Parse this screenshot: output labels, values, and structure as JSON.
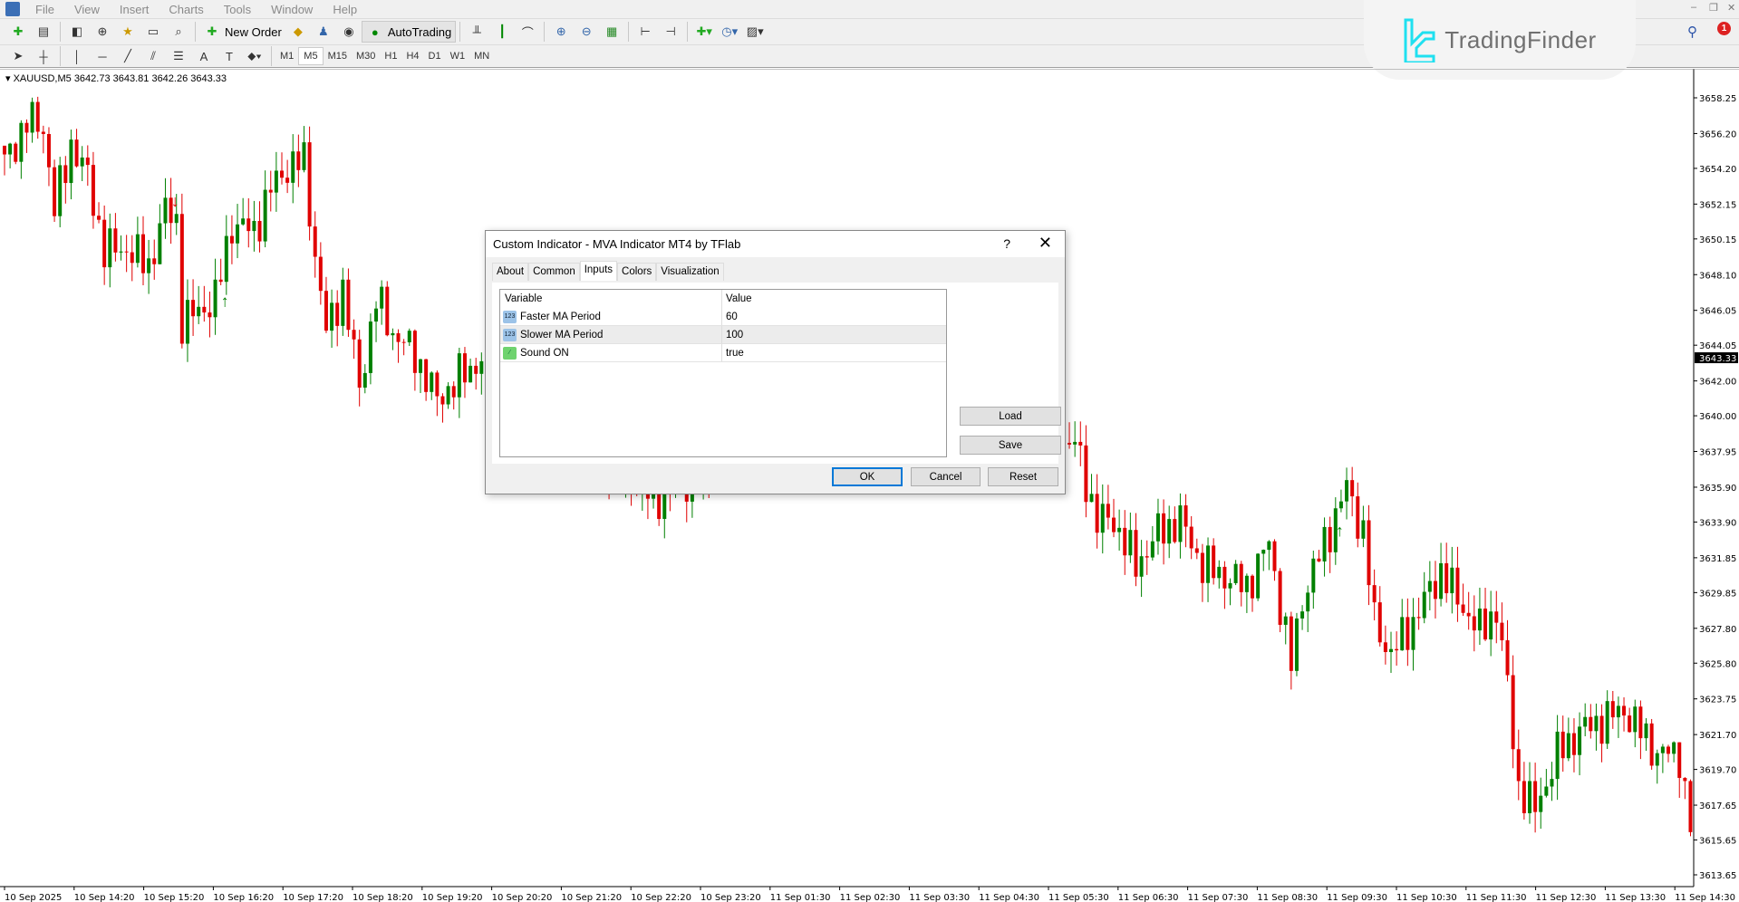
{
  "menu": [
    "File",
    "View",
    "Insert",
    "Charts",
    "Tools",
    "Window",
    "Help"
  ],
  "toolbar": {
    "new_order": "New Order",
    "auto_trading": "AutoTrading"
  },
  "timeframes": [
    "M1",
    "M5",
    "M15",
    "M30",
    "H1",
    "H4",
    "D1",
    "W1",
    "MN"
  ],
  "active_timeframe": "M5",
  "logo": {
    "text": "TradingFinder",
    "color": "#1fe0f0"
  },
  "notification_count": "1",
  "chart": {
    "header": "XAUUSD,M5  3642.73 3643.81 3642.26 3643.33",
    "symbol": "XAUUSD",
    "timeframe": "M5",
    "current_price": "3643.33",
    "colors": {
      "bull": "#008000",
      "bear": "#e00000",
      "background": "#ffffff"
    }
  },
  "chart_data": {
    "type": "candlestick",
    "y_ticks": [
      "3658.25",
      "3656.20",
      "3654.20",
      "3652.15",
      "3650.15",
      "3648.10",
      "3646.05",
      "3644.05",
      "3642.00",
      "3640.00",
      "3637.95",
      "3635.90",
      "3633.90",
      "3631.85",
      "3629.85",
      "3627.80",
      "3625.80",
      "3623.75",
      "3621.70",
      "3619.70",
      "3617.65",
      "3615.65",
      "3613.65"
    ],
    "ylim": [
      3613.65,
      3658.25
    ],
    "x_ticks": [
      "10 Sep 2025",
      "10 Sep 14:20",
      "10 Sep 15:20",
      "10 Sep 16:20",
      "10 Sep 17:20",
      "10 Sep 18:20",
      "10 Sep 19:20",
      "10 Sep 20:20",
      "10 Sep 21:20",
      "10 Sep 22:20",
      "10 Sep 23:20",
      "11 Sep 01:30",
      "11 Sep 02:30",
      "11 Sep 03:30",
      "11 Sep 04:30",
      "11 Sep 05:30",
      "11 Sep 06:30",
      "11 Sep 07:30",
      "11 Sep 08:30",
      "11 Sep 09:30",
      "11 Sep 10:30",
      "11 Sep 11:30",
      "11 Sep 12:30",
      "11 Sep 13:30",
      "11 Sep 14:30"
    ],
    "close_path": [
      [
        0,
        3654.5
      ],
      [
        4,
        3656.9
      ],
      [
        7,
        3656.6
      ],
      [
        9,
        3651.8
      ],
      [
        12,
        3655.6
      ],
      [
        15,
        3653.7
      ],
      [
        18,
        3649.5
      ],
      [
        22,
        3649.6
      ],
      [
        26,
        3648.6
      ],
      [
        29,
        3651.8
      ],
      [
        31,
        3651.2
      ],
      [
        32,
        3645.4
      ],
      [
        35,
        3646.0
      ],
      [
        38,
        3646.7
      ],
      [
        41,
        3651.0
      ],
      [
        45,
        3650.6
      ],
      [
        48,
        3653.0
      ],
      [
        51,
        3654.3
      ],
      [
        54,
        3654.6
      ],
      [
        56,
        3649.2
      ],
      [
        58,
        3644.8
      ],
      [
        61,
        3647.3
      ],
      [
        64,
        3641.6
      ],
      [
        67,
        3646.7
      ],
      [
        70,
        3644.8
      ],
      [
        74,
        3643.5
      ],
      [
        78,
        3640.9
      ],
      [
        82,
        3642.2
      ],
      [
        87,
        3643.5
      ],
      [
        117,
        3635.2
      ],
      [
        150,
        3641.0
      ],
      [
        193,
        3638.4
      ],
      [
        197,
        3634.0
      ],
      [
        200,
        3634.0
      ],
      [
        204,
        3631.4
      ],
      [
        208,
        3633.3
      ],
      [
        212,
        3634.0
      ],
      [
        216,
        3631.4
      ],
      [
        220,
        3630.8
      ],
      [
        224,
        3630.2
      ],
      [
        228,
        3632.7
      ],
      [
        232,
        3625.7
      ],
      [
        234,
        3629.5
      ],
      [
        238,
        3632.7
      ],
      [
        242,
        3635.9
      ],
      [
        245,
        3633.3
      ],
      [
        247,
        3628.2
      ],
      [
        250,
        3626.3
      ],
      [
        254,
        3628.2
      ],
      [
        259,
        3631.1
      ],
      [
        262,
        3629.5
      ],
      [
        266,
        3627.6
      ],
      [
        269,
        3628.9
      ],
      [
        271,
        3624.4
      ],
      [
        273,
        3618.7
      ],
      [
        276,
        3617.4
      ],
      [
        280,
        3620.6
      ],
      [
        284,
        3621.9
      ],
      [
        288,
        3622.5
      ],
      [
        292,
        3623.1
      ],
      [
        295,
        3621.9
      ],
      [
        298,
        3620.6
      ],
      [
        302,
        3620.6
      ],
      [
        304,
        3616.1
      ]
    ],
    "signals": [
      {
        "bar": 31,
        "type": "sell",
        "price": 3652.0
      },
      {
        "bar": 40,
        "type": "buy",
        "price": 3646.8
      },
      {
        "bar": 241,
        "type": "buy",
        "price": 3633.6
      }
    ]
  },
  "dialog": {
    "title": "Custom Indicator - MVA Indicator MT4 by TFlab",
    "help": "?",
    "tabs": [
      "About",
      "Common",
      "Inputs",
      "Colors",
      "Visualization"
    ],
    "active_tab": "Inputs",
    "columns": [
      "Variable",
      "Value"
    ],
    "rows": [
      {
        "variable": "Faster MA Period",
        "value": "60",
        "icon": "numeric-123-icon"
      },
      {
        "variable": "Slower MA Period",
        "value": "100",
        "icon": "numeric-123-icon"
      },
      {
        "variable": "Sound ON",
        "value": "true",
        "icon": "boolean-icon"
      }
    ],
    "buttons": {
      "load": "Load",
      "save": "Save",
      "ok": "OK",
      "cancel": "Cancel",
      "reset": "Reset"
    }
  }
}
